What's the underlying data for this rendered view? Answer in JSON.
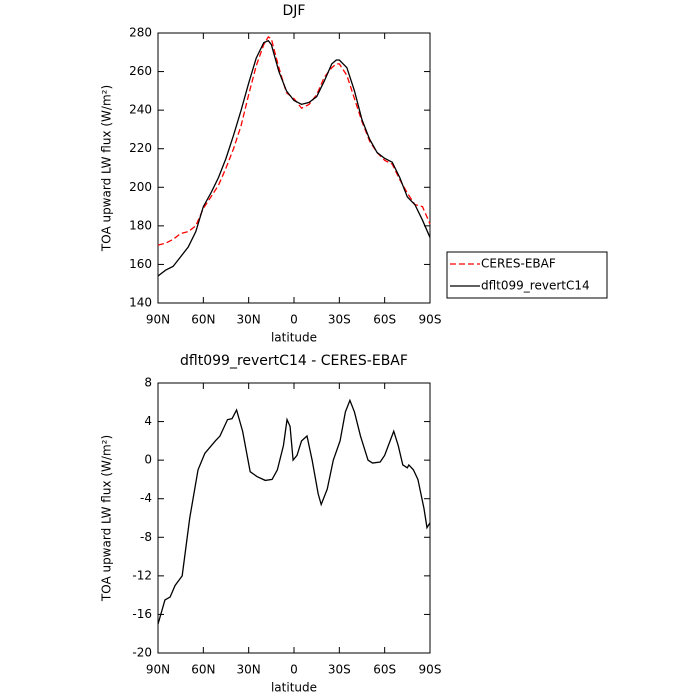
{
  "chart_data": [
    {
      "type": "line",
      "title": "DJF",
      "xlabel": "latitude",
      "ylabel": "TOA upward LW flux (W/m²)",
      "xlim": [
        90,
        -90
      ],
      "xticks": [
        {
          "value": 90,
          "label": "90N"
        },
        {
          "value": 60,
          "label": "60N"
        },
        {
          "value": 30,
          "label": "30N"
        },
        0,
        {
          "value": -30,
          "label": "30S"
        },
        {
          "value": -60,
          "label": "60S"
        },
        {
          "value": -90,
          "label": "90S"
        }
      ],
      "ylim": [
        140,
        280
      ],
      "yticks": [
        140,
        160,
        180,
        200,
        220,
        240,
        260,
        280
      ],
      "legend": "right",
      "x": [
        90,
        85,
        80,
        75,
        70,
        65,
        60,
        55,
        50,
        45,
        40,
        35,
        30,
        25,
        20,
        17,
        15,
        10,
        5,
        0,
        -5,
        -10,
        -15,
        -20,
        -25,
        -28,
        -30,
        -35,
        -40,
        -45,
        -50,
        -55,
        -60,
        -65,
        -70,
        -75,
        -80,
        -85,
        -90
      ],
      "series": [
        {
          "name": "CERES-EBAF",
          "color": "#ff0000",
          "linestyle": "dashed",
          "values": [
            170,
            171,
            173,
            176,
            177,
            180,
            189,
            195,
            201,
            210,
            220,
            232,
            248,
            263,
            274,
            278,
            277,
            262,
            249,
            246,
            241,
            243,
            248,
            257,
            262,
            264,
            264,
            258,
            246,
            234,
            224,
            218,
            214,
            212,
            204,
            197,
            191,
            190,
            181
          ]
        },
        {
          "name": "dflt099_revertC14",
          "color": "#000000",
          "linestyle": "solid",
          "values": [
            154,
            157,
            159,
            164,
            169,
            177,
            190,
            197,
            205,
            215,
            227,
            240,
            254,
            267,
            275,
            276,
            274,
            260,
            250,
            245,
            243,
            244,
            247,
            255,
            264,
            266,
            266,
            262,
            250,
            235,
            225,
            218,
            215,
            213,
            205,
            195,
            191,
            183,
            174
          ]
        }
      ]
    },
    {
      "type": "line",
      "title": "dflt099_revertC14 - CERES-EBAF",
      "xlabel": "latitude",
      "ylabel": "TOA upward LW flux (W/m²)",
      "xlim": [
        90,
        -90
      ],
      "xticks": [
        {
          "value": 90,
          "label": "90N"
        },
        {
          "value": 60,
          "label": "60N"
        },
        {
          "value": 30,
          "label": "30N"
        },
        0,
        {
          "value": -30,
          "label": "30S"
        },
        {
          "value": -60,
          "label": "60S"
        },
        {
          "value": -90,
          "label": "90S"
        }
      ],
      "ylim": [
        -20,
        8
      ],
      "yticks": [
        -20,
        -16,
        -12,
        -8,
        -4,
        0,
        4,
        8
      ],
      "color": "#000000",
      "x": [
        90,
        85.4,
        82,
        78.7,
        74,
        69,
        63.5,
        59,
        52,
        49,
        44,
        41,
        38,
        34,
        29,
        24.5,
        19,
        14.5,
        11,
        7,
        4.6,
        2.6,
        0.6,
        -2,
        -5,
        -8.6,
        -12,
        -16,
        -18,
        -22,
        -26,
        -30.5,
        -34,
        -37,
        -40,
        -44,
        -49,
        -52,
        -57,
        -60,
        -63.6,
        -66,
        -69,
        -72,
        -75,
        -76,
        -79,
        -82,
        -86,
        -88,
        -90
      ],
      "values": [
        -17,
        -14.5,
        -14.2,
        -13,
        -12,
        -6,
        -1,
        0.7,
        2,
        2.5,
        4.2,
        4.3,
        5.2,
        3,
        -1.2,
        -1.7,
        -2.1,
        -2,
        -1,
        1.5,
        4.2,
        3.5,
        0,
        0.5,
        2,
        2.5,
        0,
        -3.5,
        -4.6,
        -3,
        0,
        2,
        5,
        6.2,
        5,
        2.5,
        0,
        -0.3,
        -0.2,
        0.5,
        2,
        3,
        1.5,
        -0.5,
        -0.8,
        -0.5,
        -1,
        -2,
        -5,
        -7,
        -6.5
      ]
    }
  ]
}
